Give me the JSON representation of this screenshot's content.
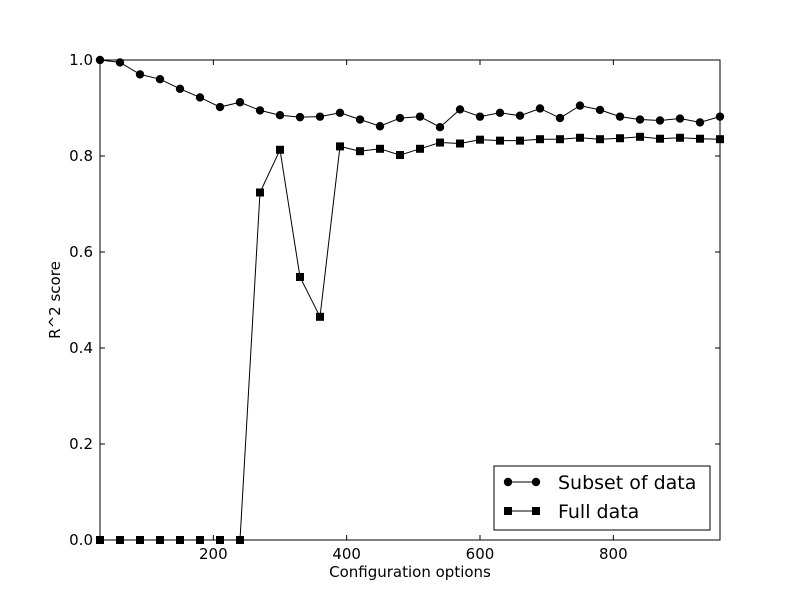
{
  "chart_data": {
    "type": "line",
    "title": "",
    "xlabel": "Configuration options",
    "ylabel": "R^2 score",
    "xlim": [
      30,
      960
    ],
    "ylim": [
      0.0,
      1.0
    ],
    "xticks": [
      200,
      400,
      600,
      800
    ],
    "yticks": [
      0.0,
      0.2,
      0.4,
      0.6,
      0.8,
      1.0
    ],
    "xtick_labels": [
      "200",
      "400",
      "600",
      "800"
    ],
    "ytick_labels": [
      "0.0",
      "0.2",
      "0.4",
      "0.6",
      "0.8",
      "1.0"
    ],
    "grid": false,
    "legend_position": "bottom-right",
    "series": [
      {
        "name": "Subset of data",
        "marker": "circle",
        "color": "#000000",
        "x": [
          30,
          60,
          90,
          120,
          150,
          180,
          210,
          240,
          270,
          300,
          330,
          360,
          390,
          420,
          450,
          480,
          510,
          540,
          570,
          600,
          630,
          660,
          690,
          720,
          750,
          780,
          810,
          840,
          870,
          900,
          930,
          960
        ],
        "y": [
          1.0,
          0.995,
          0.97,
          0.96,
          0.94,
          0.922,
          0.902,
          0.912,
          0.895,
          0.885,
          0.881,
          0.882,
          0.89,
          0.876,
          0.862,
          0.879,
          0.882,
          0.86,
          0.897,
          0.882,
          0.89,
          0.884,
          0.899,
          0.879,
          0.905,
          0.896,
          0.882,
          0.876,
          0.874,
          0.878,
          0.87,
          0.882
        ]
      },
      {
        "name": "Full data",
        "marker": "square",
        "color": "#000000",
        "x": [
          30,
          60,
          90,
          120,
          150,
          180,
          210,
          240,
          270,
          300,
          330,
          360,
          390,
          420,
          450,
          480,
          510,
          540,
          570,
          600,
          630,
          660,
          690,
          720,
          750,
          780,
          810,
          840,
          870,
          900,
          930,
          960
        ],
        "y": [
          0.0,
          0.0,
          0.0,
          0.0,
          0.0,
          0.0,
          0.0,
          0.0,
          0.724,
          0.813,
          0.548,
          0.465,
          0.82,
          0.81,
          0.815,
          0.802,
          0.815,
          0.828,
          0.826,
          0.834,
          0.832,
          0.832,
          0.835,
          0.835,
          0.838,
          0.835,
          0.837,
          0.84,
          0.836,
          0.838,
          0.836,
          0.835
        ]
      }
    ]
  }
}
